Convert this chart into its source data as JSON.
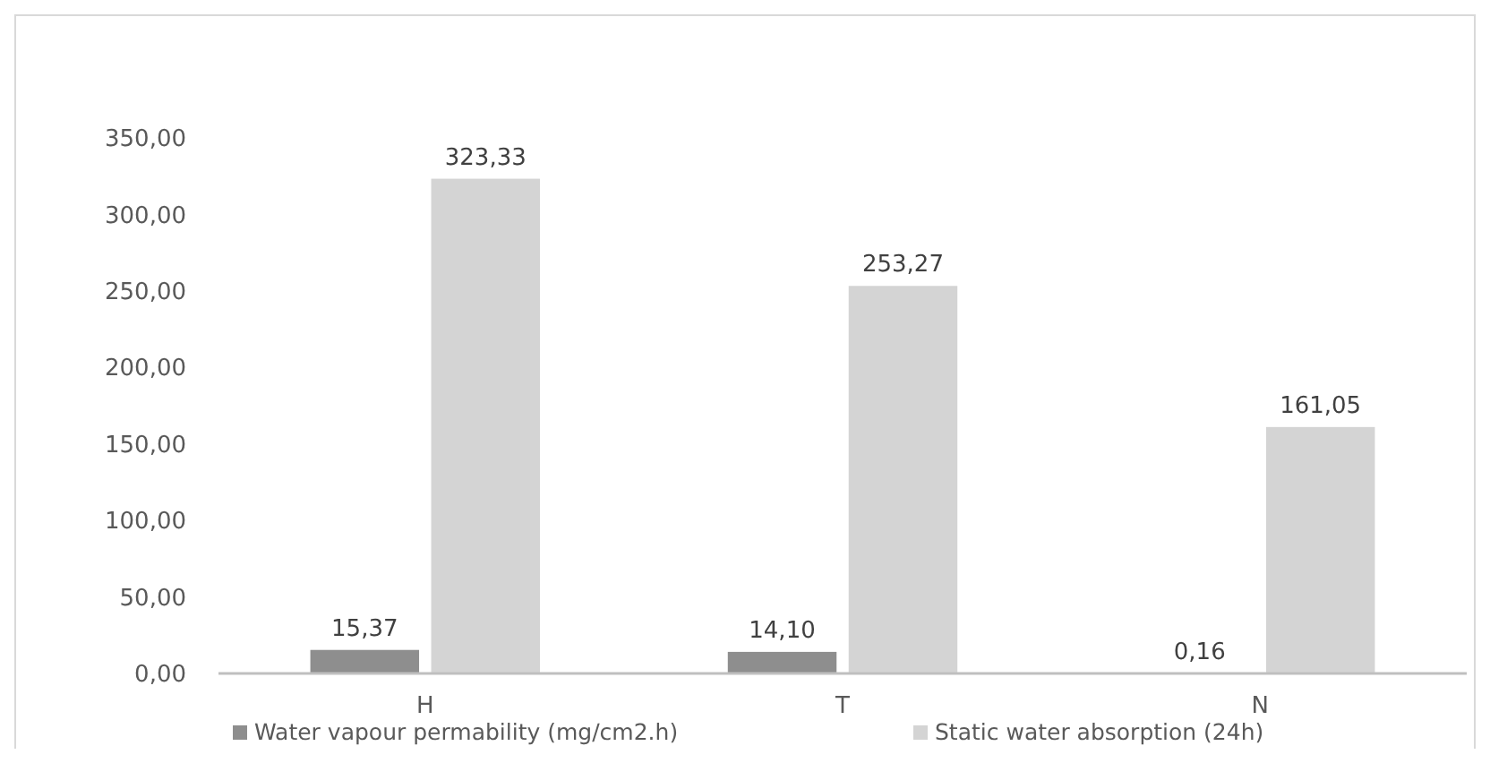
{
  "chart_data": {
    "type": "bar",
    "categories": [
      "H",
      "T",
      "N"
    ],
    "series": [
      {
        "name": "Water vapour permability (mg/cm2.h)",
        "color": "#8e8e8e",
        "values": [
          15.37,
          14.1,
          0.16
        ],
        "value_labels": [
          "15,37",
          "14,10",
          "0,16"
        ]
      },
      {
        "name": "Static water absorption (24h)",
        "color": "#d4d4d4",
        "values": [
          323.33,
          253.27,
          161.05
        ],
        "value_labels": [
          "323,33",
          "253,27",
          "161,05"
        ]
      }
    ],
    "ylim": [
      0,
      350
    ],
    "yticks": [
      {
        "value": 0,
        "label": "0,00"
      },
      {
        "value": 50,
        "label": "50,00"
      },
      {
        "value": 100,
        "label": "100,00"
      },
      {
        "value": 150,
        "label": "150,00"
      },
      {
        "value": 200,
        "label": "200,00"
      },
      {
        "value": 250,
        "label": "250,00"
      },
      {
        "value": 300,
        "label": "300,00"
      },
      {
        "value": 350,
        "label": "350,00"
      }
    ],
    "grid": false,
    "legend": "bottom"
  }
}
